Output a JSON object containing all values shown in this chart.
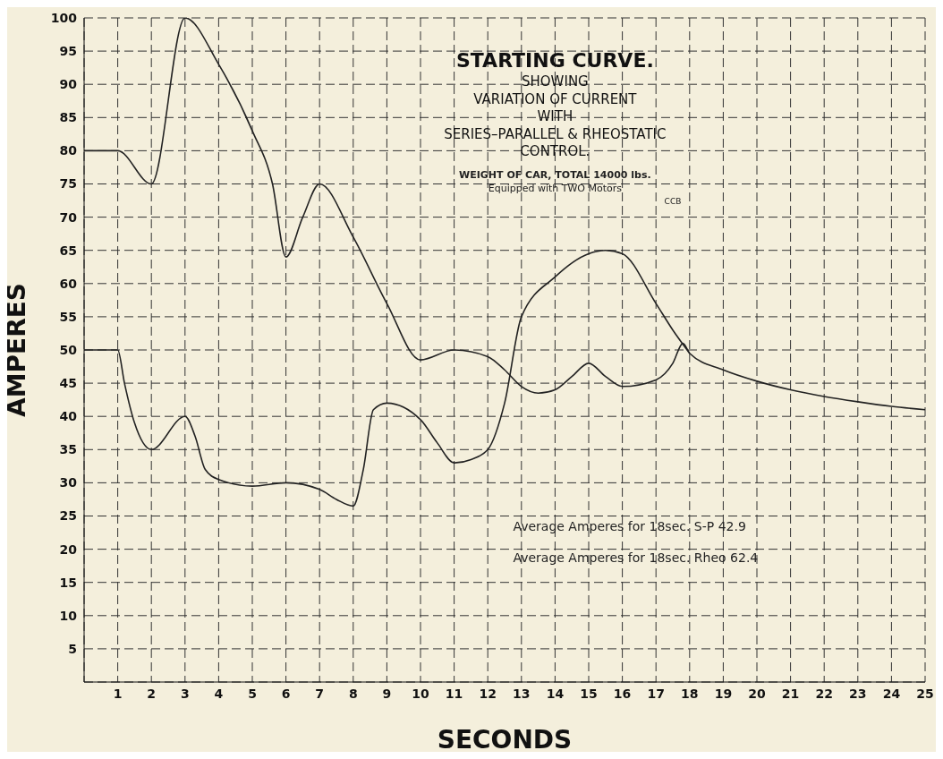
{
  "chart_data": {
    "type": "line",
    "title": "STARTING CURVE.",
    "subtitle": "SHOWING\nVARIATION OF CURRENT\nWITH\nSERIES–PARALLEL & RHEOSTATIC\nCONTROL.",
    "xlabel": "SECONDS",
    "ylabel": "AMPERES",
    "annotations": [
      "WEIGHT OF CAR, TOTAL 14000 lbs.",
      "Equipped with TWO Motors",
      "CCB",
      "Average Amperes for 18sec. S-P 42.9",
      "Average Amperes for 18sec. Rheo 62.4"
    ],
    "xlim": [
      0,
      25
    ],
    "xticks": [
      1,
      2,
      3,
      4,
      5,
      6,
      7,
      8,
      9,
      10,
      11,
      12,
      13,
      14,
      15,
      16,
      17,
      18,
      19,
      20,
      21,
      22,
      23,
      24,
      25
    ],
    "ylim": [
      0,
      100
    ],
    "yticks": [
      5,
      10,
      15,
      20,
      25,
      30,
      35,
      40,
      45,
      50,
      55,
      60,
      65,
      70,
      75,
      80,
      85,
      90,
      95,
      100
    ],
    "grid": true,
    "marker": "none",
    "line_style": "solid",
    "series": [
      {
        "color": "#222222",
        "x": [
          0,
          1,
          2,
          3,
          4,
          5,
          5.6,
          6,
          6.5,
          7,
          8,
          9,
          10,
          11,
          12,
          12.5,
          13,
          13.5,
          14,
          14.5,
          15,
          15.5,
          16,
          17,
          17.5,
          17.8,
          18,
          19,
          20,
          21,
          22,
          23,
          24,
          25
        ],
        "values": [
          80,
          80,
          75,
          100,
          93,
          83,
          75,
          64,
          70,
          75,
          67,
          57,
          48.5,
          50,
          49,
          47,
          44.5,
          43.5,
          44,
          46,
          48,
          46,
          44.5,
          45.5,
          48,
          51,
          49.5,
          47,
          45.3,
          44,
          43,
          42.2,
          41.5,
          41
        ]
      },
      {
        "color": "#222222",
        "x": [
          0,
          1,
          1.2,
          1.5,
          2,
          3,
          3.3,
          3.6,
          4,
          5,
          6,
          7,
          7.5,
          8,
          8.3,
          8.6,
          9,
          10,
          10.5,
          11,
          11.5,
          12,
          12.5,
          13,
          14,
          15,
          15.5,
          16,
          17,
          17.5,
          18
        ],
        "values": [
          50,
          50,
          45,
          39,
          35,
          40,
          37,
          32,
          30.5,
          29.5,
          30,
          29,
          27.5,
          26.5,
          32,
          41,
          42,
          39.5,
          36,
          33,
          33.5,
          35,
          42,
          55,
          61,
          64.5,
          65,
          64.5,
          57,
          53,
          49.5
        ]
      }
    ]
  }
}
